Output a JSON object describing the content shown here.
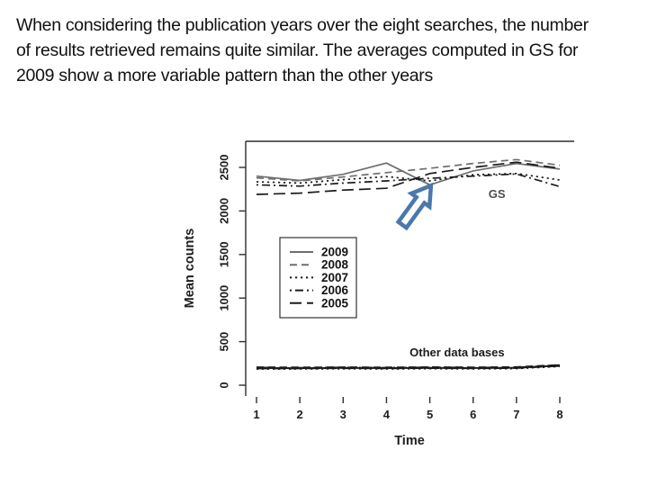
{
  "slide": {
    "paragraph_lines": [
      "When considering the publication years over the eight searches, the number",
      "of results retrieved remains quite similar. The averages computed in GS for",
      "2009 show a more variable pattern than the other years"
    ]
  },
  "arrow": {
    "color": "#4a78ad"
  },
  "chart_data": {
    "type": "line",
    "title": "",
    "xlabel": "Time",
    "ylabel": "Mean counts",
    "x": [
      1,
      2,
      3,
      4,
      5,
      6,
      7,
      8
    ],
    "xticks": [
      1,
      2,
      3,
      4,
      5,
      6,
      7,
      8
    ],
    "yticks": [
      0,
      500,
      1000,
      1500,
      2000,
      2500
    ],
    "xlim": [
      1,
      8
    ],
    "ylim": [
      0,
      2700
    ],
    "grid": false,
    "legend_position": "middle-left",
    "legend_entries": [
      "2009",
      "2008",
      "2007",
      "2006",
      "2005"
    ],
    "annotations": [
      {
        "text": "GS",
        "x": 6.55,
        "y": 2150,
        "color": "#4d4d4d"
      },
      {
        "text": "Other data bases",
        "x": 5.63,
        "y": 330,
        "color": "#1b1b1b"
      }
    ],
    "series": [
      {
        "name": "2009",
        "group": "GS",
        "linestyle": "solid",
        "color": "#6e6e6e",
        "values": [
          2400,
          2350,
          2420,
          2550,
          2300,
          2460,
          2545,
          2480
        ]
      },
      {
        "name": "2008",
        "group": "GS",
        "linestyle": "dashed",
        "color": "#6e6e6e",
        "values": [
          2380,
          2345,
          2390,
          2440,
          2490,
          2545,
          2590,
          2525
        ]
      },
      {
        "name": "2007",
        "group": "GS",
        "linestyle": "dotted",
        "color": "#1b1b1b",
        "values": [
          2335,
          2320,
          2360,
          2395,
          2345,
          2415,
          2430,
          2355
        ]
      },
      {
        "name": "2006",
        "group": "GS",
        "linestyle": "dashdot",
        "color": "#1b1b1b",
        "values": [
          2300,
          2285,
          2320,
          2345,
          2375,
          2400,
          2425,
          2280
        ]
      },
      {
        "name": "2005",
        "group": "GS",
        "linestyle": "longdash",
        "color": "#1b1b1b",
        "values": [
          2190,
          2205,
          2240,
          2260,
          2430,
          2500,
          2560,
          2490
        ]
      },
      {
        "name": "2009",
        "group": "Other data bases",
        "linestyle": "solid",
        "color": "#1b1b1b",
        "values": [
          197,
          195,
          198,
          196,
          199,
          197,
          200,
          226
        ]
      },
      {
        "name": "2008",
        "group": "Other data bases",
        "linestyle": "dashed",
        "color": "#1b1b1b",
        "values": [
          206,
          204,
          206,
          203,
          207,
          205,
          208,
          232
        ]
      },
      {
        "name": "2007",
        "group": "Other data bases",
        "linestyle": "dotted",
        "color": "#1b1b1b",
        "values": [
          187,
          188,
          190,
          188,
          191,
          189,
          192,
          217
        ]
      },
      {
        "name": "2006",
        "group": "Other data bases",
        "linestyle": "dashdot",
        "color": "#1b1b1b",
        "values": [
          201,
          199,
          202,
          200,
          203,
          201,
          204,
          229
        ]
      },
      {
        "name": "2005",
        "group": "Other data bases",
        "linestyle": "longdash",
        "color": "#1b1b1b",
        "values": [
          192,
          193,
          195,
          193,
          196,
          194,
          197,
          221
        ]
      }
    ]
  }
}
